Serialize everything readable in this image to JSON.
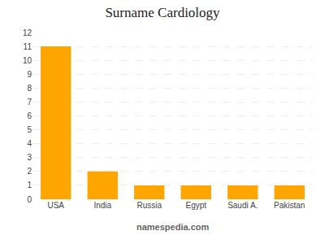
{
  "chart_data": {
    "type": "bar",
    "title": "Surname Cardiology",
    "categories": [
      "USA",
      "India",
      "Russia",
      "Egypt",
      "Saudi A.",
      "Pakistan"
    ],
    "values": [
      11,
      2,
      1,
      1,
      1,
      1
    ],
    "color": "#FFA500",
    "ylim": [
      0,
      12
    ],
    "yticks": [
      0,
      1,
      2,
      3,
      4,
      5,
      6,
      7,
      8,
      9,
      10,
      11,
      12
    ],
    "grid": true,
    "annotations": [
      "namespedia.com"
    ]
  }
}
